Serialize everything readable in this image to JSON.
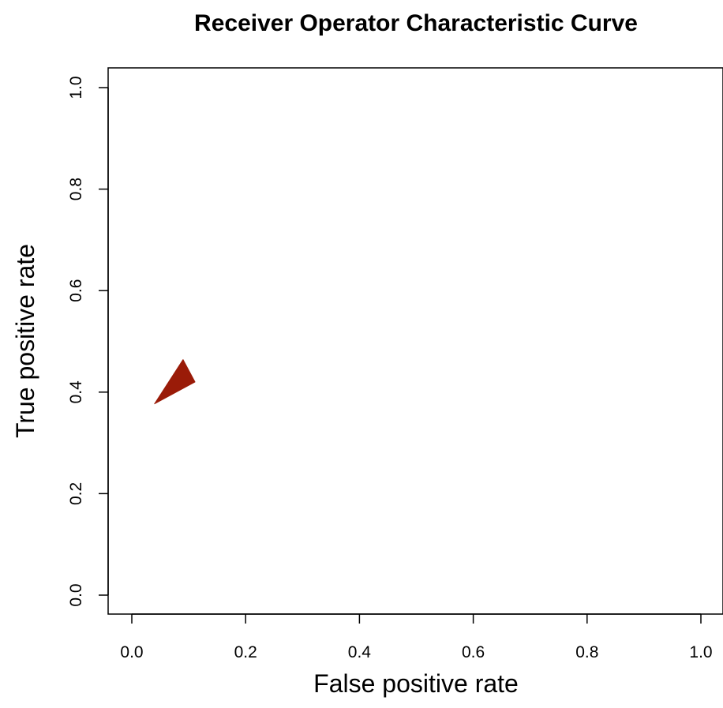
{
  "chart_data": {
    "type": "line",
    "title": "Receiver Operator Characteristic Curve",
    "xlabel": "False positive rate",
    "ylabel": "True positive rate",
    "xlim": [
      0.0,
      1.0
    ],
    "ylim": [
      0.0,
      1.0
    ],
    "xticks": [
      "0.0",
      "0.2",
      "0.4",
      "0.6",
      "0.8",
      "1.0"
    ],
    "yticks": [
      "0.0",
      "0.2",
      "0.4",
      "0.6",
      "0.8",
      "1.0"
    ],
    "grid": false,
    "legend": "none",
    "series": [
      {
        "color": "#9a1b08",
        "filled": true,
        "points": [
          {
            "x": 0.04,
            "y": 0.377
          },
          {
            "x": 0.09,
            "y": 0.464
          },
          {
            "x": 0.111,
            "y": 0.42
          }
        ]
      }
    ]
  }
}
